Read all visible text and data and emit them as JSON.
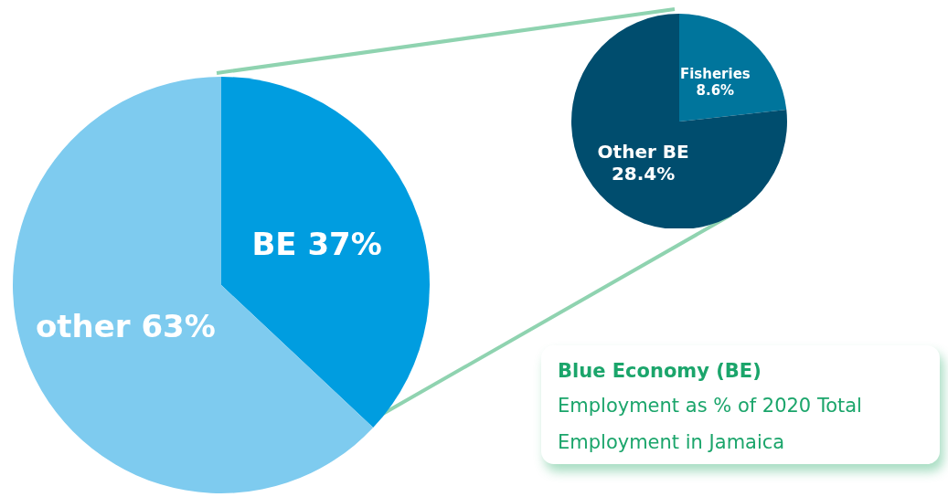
{
  "chart_data": [
    {
      "type": "pie",
      "title": "Blue Economy (BE)",
      "subtitle": "Employment as % of 2020 Total Employment in Jamaica",
      "categories": [
        "BE",
        "other"
      ],
      "values": [
        37,
        63
      ],
      "value_labels": [
        "37%",
        "63%"
      ],
      "colors": [
        "#009de0",
        "#7ecbef"
      ]
    },
    {
      "type": "pie",
      "categories": [
        "Fisheries",
        "Other BE"
      ],
      "values": [
        8.6,
        28.4
      ],
      "value_labels": [
        "8.6%",
        "28.4%"
      ],
      "colors": [
        "#00759c",
        "#004d6e"
      ]
    }
  ]
}
